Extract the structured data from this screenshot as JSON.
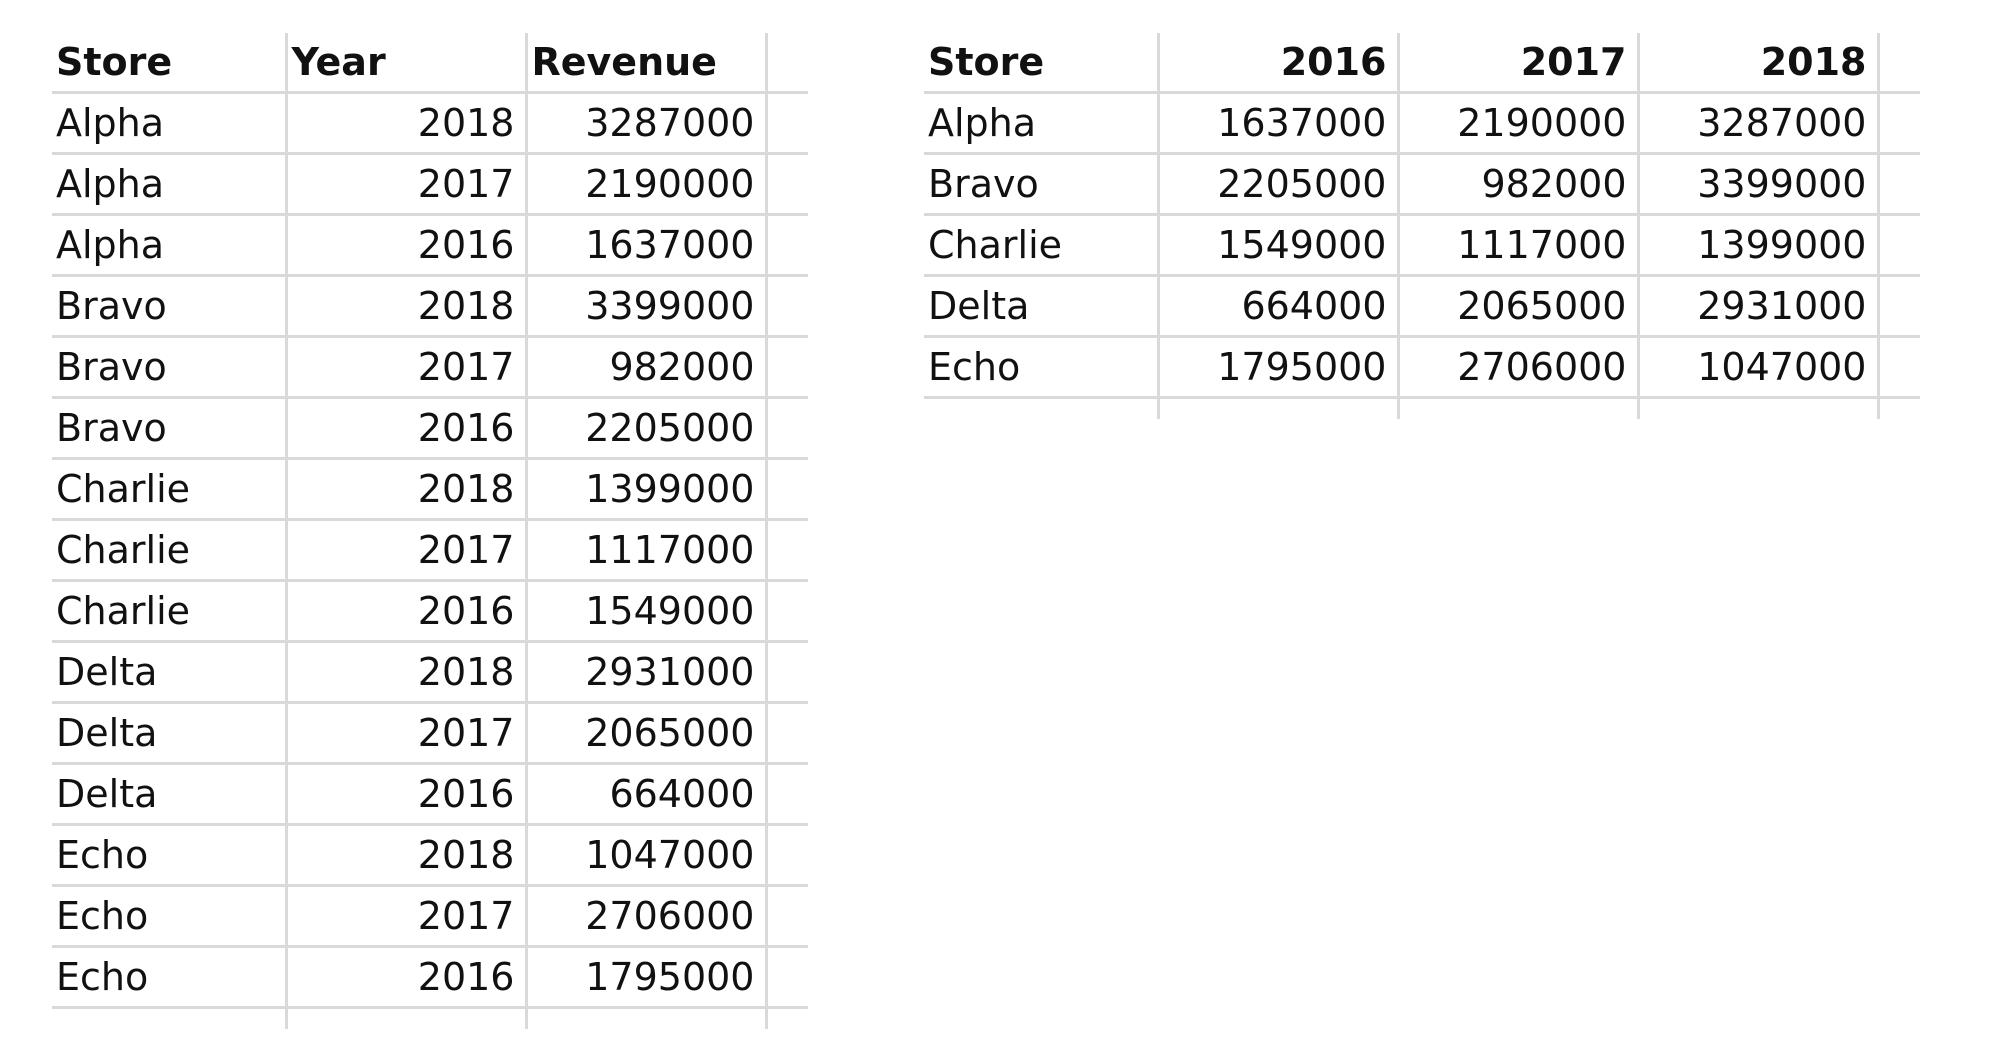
{
  "long_table": {
    "headers": [
      "Store",
      "Year",
      "Revenue"
    ],
    "rows": [
      [
        "Alpha",
        "2018",
        "3287000"
      ],
      [
        "Alpha",
        "2017",
        "2190000"
      ],
      [
        "Alpha",
        "2016",
        "1637000"
      ],
      [
        "Bravo",
        "2018",
        "3399000"
      ],
      [
        "Bravo",
        "2017",
        "982000"
      ],
      [
        "Bravo",
        "2016",
        "2205000"
      ],
      [
        "Charlie",
        "2018",
        "1399000"
      ],
      [
        "Charlie",
        "2017",
        "1117000"
      ],
      [
        "Charlie",
        "2016",
        "1549000"
      ],
      [
        "Delta",
        "2018",
        "2931000"
      ],
      [
        "Delta",
        "2017",
        "2065000"
      ],
      [
        "Delta",
        "2016",
        "664000"
      ],
      [
        "Echo",
        "2018",
        "1047000"
      ],
      [
        "Echo",
        "2017",
        "2706000"
      ],
      [
        "Echo",
        "2016",
        "1795000"
      ]
    ]
  },
  "wide_table": {
    "headers": [
      "Store",
      "2016",
      "2017",
      "2018"
    ],
    "rows": [
      [
        "Alpha",
        "1637000",
        "2190000",
        "3287000"
      ],
      [
        "Bravo",
        "2205000",
        "982000",
        "3399000"
      ],
      [
        "Charlie",
        "1549000",
        "1117000",
        "1399000"
      ],
      [
        "Delta",
        "664000",
        "2065000",
        "2931000"
      ],
      [
        "Echo",
        "1795000",
        "2706000",
        "1047000"
      ]
    ]
  }
}
